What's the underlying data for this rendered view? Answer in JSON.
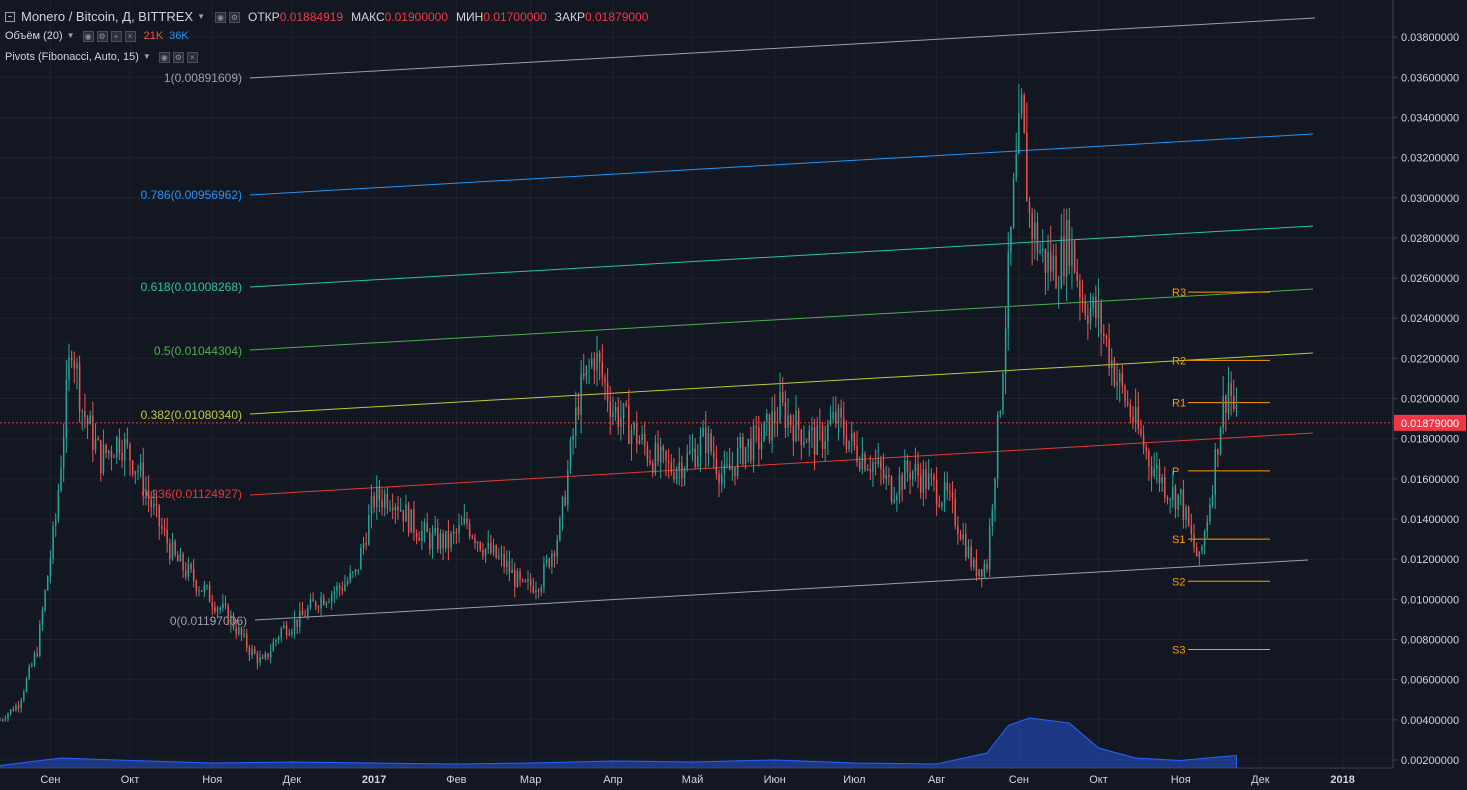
{
  "header": {
    "symbol": "Monero / Bitcoin, Д, BITTREX",
    "open_label": "ОТКР",
    "open": "0.01884919",
    "high_label": "МАКС",
    "high": "0.01900000",
    "low_label": "МИН",
    "low": "0.01700000",
    "close_label": "ЗАКР",
    "close": "0.01879000"
  },
  "volume_study": {
    "title": "Объём (20)",
    "v1": "21K",
    "v2": "36K"
  },
  "pivot_study": {
    "title": "Pivots (Fibonacci, Auto, 15)"
  },
  "colors": {
    "background": "#131722",
    "grid": "#1e222d",
    "up": "#26a69a",
    "down": "#ef5350",
    "volume": "#2962ff",
    "price_tag": "#f23645",
    "pivot": "#ff9800",
    "axis_text": "#d1d4dc"
  },
  "chart_data": {
    "type": "candlestick",
    "title": "Monero / Bitcoin, Д, BITTREX",
    "y_axis_range": [
      0.0019,
      0.0395
    ],
    "y_tick_labels": [
      "0.03800000",
      "0.03600000",
      "0.03400000",
      "0.03200000",
      "0.03000000",
      "0.02800000",
      "0.02600000",
      "0.02400000",
      "0.02200000",
      "0.02000000",
      "0.01800000",
      "0.01600000",
      "0.01400000",
      "0.01200000",
      "0.01000000",
      "0.00800000",
      "0.00600000",
      "0.00400000",
      "0.00200000"
    ],
    "y_tick_values": [
      0.038,
      0.036,
      0.034,
      0.032,
      0.03,
      0.028,
      0.026,
      0.024,
      0.022,
      0.02,
      0.018,
      0.016,
      0.014,
      0.012,
      0.01,
      0.008,
      0.006,
      0.004,
      0.002
    ],
    "x_range": [
      "2016-08-13",
      "2018-01-20"
    ],
    "x_tick_labels": [
      "Сен",
      "Окт",
      "Ноя",
      "Дек",
      "2017",
      "Фев",
      "Мар",
      "Апр",
      "Май",
      "Июн",
      "Июл",
      "Авг",
      "Сен",
      "Окт",
      "Ноя",
      "Дек",
      "2018"
    ],
    "x_tick_dates": [
      "2016-09-01",
      "2016-10-01",
      "2016-11-01",
      "2016-12-01",
      "2017-01-01",
      "2017-02-01",
      "2017-03-01",
      "2017-04-01",
      "2017-05-01",
      "2017-06-01",
      "2017-07-01",
      "2017-08-01",
      "2017-09-01",
      "2017-10-01",
      "2017-11-01",
      "2017-12-01",
      "2018-01-01"
    ],
    "last_price_label": "0.01879000",
    "last_price": 0.01879,
    "price_path": [
      [
        "2016-08-13",
        0.004
      ],
      [
        "2016-08-20",
        0.0048
      ],
      [
        "2016-08-27",
        0.0075
      ],
      [
        "2016-09-03",
        0.014
      ],
      [
        "2016-09-09",
        0.023
      ],
      [
        "2016-09-13",
        0.0195
      ],
      [
        "2016-09-20",
        0.017
      ],
      [
        "2016-09-27",
        0.018
      ],
      [
        "2016-10-04",
        0.0165
      ],
      [
        "2016-10-11",
        0.014
      ],
      [
        "2016-10-18",
        0.012
      ],
      [
        "2016-10-25",
        0.011
      ],
      [
        "2016-11-01",
        0.01
      ],
      [
        "2016-11-08",
        0.009
      ],
      [
        "2016-11-15",
        0.0075
      ],
      [
        "2016-11-20",
        0.0068
      ],
      [
        "2016-11-27",
        0.0085
      ],
      [
        "2016-12-04",
        0.009
      ],
      [
        "2016-12-11",
        0.01
      ],
      [
        "2016-12-18",
        0.0105
      ],
      [
        "2016-12-25",
        0.0112
      ],
      [
        "2017-01-01",
        0.015
      ],
      [
        "2017-01-08",
        0.0152
      ],
      [
        "2017-01-15",
        0.0138
      ],
      [
        "2017-01-22",
        0.013
      ],
      [
        "2017-01-29",
        0.0128
      ],
      [
        "2017-02-05",
        0.0138
      ],
      [
        "2017-02-12",
        0.0125
      ],
      [
        "2017-02-19",
        0.0118
      ],
      [
        "2017-02-26",
        0.0105
      ],
      [
        "2017-03-05",
        0.011
      ],
      [
        "2017-03-12",
        0.0135
      ],
      [
        "2017-03-19",
        0.02
      ],
      [
        "2017-03-25",
        0.0222
      ],
      [
        "2017-04-01",
        0.0195
      ],
      [
        "2017-04-08",
        0.0185
      ],
      [
        "2017-04-15",
        0.0172
      ],
      [
        "2017-04-22",
        0.0165
      ],
      [
        "2017-04-29",
        0.017
      ],
      [
        "2017-05-06",
        0.018
      ],
      [
        "2017-05-13",
        0.016
      ],
      [
        "2017-05-20",
        0.0175
      ],
      [
        "2017-05-27",
        0.018
      ],
      [
        "2017-06-03",
        0.0195
      ],
      [
        "2017-06-10",
        0.0185
      ],
      [
        "2017-06-17",
        0.0178
      ],
      [
        "2017-06-24",
        0.019
      ],
      [
        "2017-07-01",
        0.0175
      ],
      [
        "2017-07-08",
        0.0168
      ],
      [
        "2017-07-15",
        0.0155
      ],
      [
        "2017-07-22",
        0.0165
      ],
      [
        "2017-07-29",
        0.0158
      ],
      [
        "2017-08-05",
        0.015
      ],
      [
        "2017-08-10",
        0.0135
      ],
      [
        "2017-08-15",
        0.0115
      ],
      [
        "2017-08-20",
        0.0118
      ],
      [
        "2017-08-25",
        0.02
      ],
      [
        "2017-08-30",
        0.03
      ],
      [
        "2017-09-02",
        0.034
      ],
      [
        "2017-09-05",
        0.029
      ],
      [
        "2017-09-10",
        0.027
      ],
      [
        "2017-09-15",
        0.0265
      ],
      [
        "2017-09-20",
        0.028
      ],
      [
        "2017-09-25",
        0.025
      ],
      [
        "2017-10-01",
        0.024
      ],
      [
        "2017-10-08",
        0.021
      ],
      [
        "2017-10-14",
        0.019
      ],
      [
        "2017-10-20",
        0.017
      ],
      [
        "2017-10-27",
        0.0155
      ],
      [
        "2017-11-01",
        0.015
      ],
      [
        "2017-11-05",
        0.013
      ],
      [
        "2017-11-08",
        0.0118
      ],
      [
        "2017-11-12",
        0.015
      ],
      [
        "2017-11-16",
        0.019
      ],
      [
        "2017-11-19",
        0.0208
      ],
      [
        "2017-11-22",
        0.01879
      ]
    ],
    "fib_channel": [
      {
        "label": "1(0.00891609)",
        "color": "#9aa0ab"
      },
      {
        "label": "0.786(0.00956962)",
        "color": "#2196f3"
      },
      {
        "label": "0.618(0.01008268)",
        "color": "#26c6a8"
      },
      {
        "label": "0.5(0.01044304)",
        "color": "#4caf50"
      },
      {
        "label": "0.382(0.01080340)",
        "color": "#c0ca33"
      },
      {
        "label": "0.236(0.01124927)",
        "color": "#e53935"
      },
      {
        "label": "0(0.01197006)",
        "color": "#9aa0ab"
      }
    ],
    "pivot_levels": [
      {
        "name": "R3",
        "value": 0.0253
      },
      {
        "name": "R2",
        "value": 0.0219
      },
      {
        "name": "R1",
        "value": 0.0198
      },
      {
        "name": "P",
        "value": 0.0164
      },
      {
        "name": "S1",
        "value": 0.013
      },
      {
        "name": "S2",
        "value": 0.0109
      },
      {
        "name": "S3",
        "value": 0.0075
      }
    ],
    "volume_series": [
      [
        "2016-08-13",
        0.05
      ],
      [
        "2016-09-05",
        0.2
      ],
      [
        "2016-10-01",
        0.15
      ],
      [
        "2016-11-01",
        0.1
      ],
      [
        "2016-12-01",
        0.12
      ],
      [
        "2017-01-01",
        0.1
      ],
      [
        "2017-02-01",
        0.08
      ],
      [
        "2017-03-01",
        0.1
      ],
      [
        "2017-04-01",
        0.14
      ],
      [
        "2017-05-01",
        0.12
      ],
      [
        "2017-06-01",
        0.16
      ],
      [
        "2017-07-01",
        0.1
      ],
      [
        "2017-08-01",
        0.08
      ],
      [
        "2017-08-20",
        0.3
      ],
      [
        "2017-08-28",
        0.85
      ],
      [
        "2017-09-05",
        1.0
      ],
      [
        "2017-09-20",
        0.9
      ],
      [
        "2017-10-01",
        0.4
      ],
      [
        "2017-10-15",
        0.2
      ],
      [
        "2017-11-01",
        0.15
      ],
      [
        "2017-11-15",
        0.22
      ],
      [
        "2017-11-22",
        0.25
      ]
    ]
  }
}
